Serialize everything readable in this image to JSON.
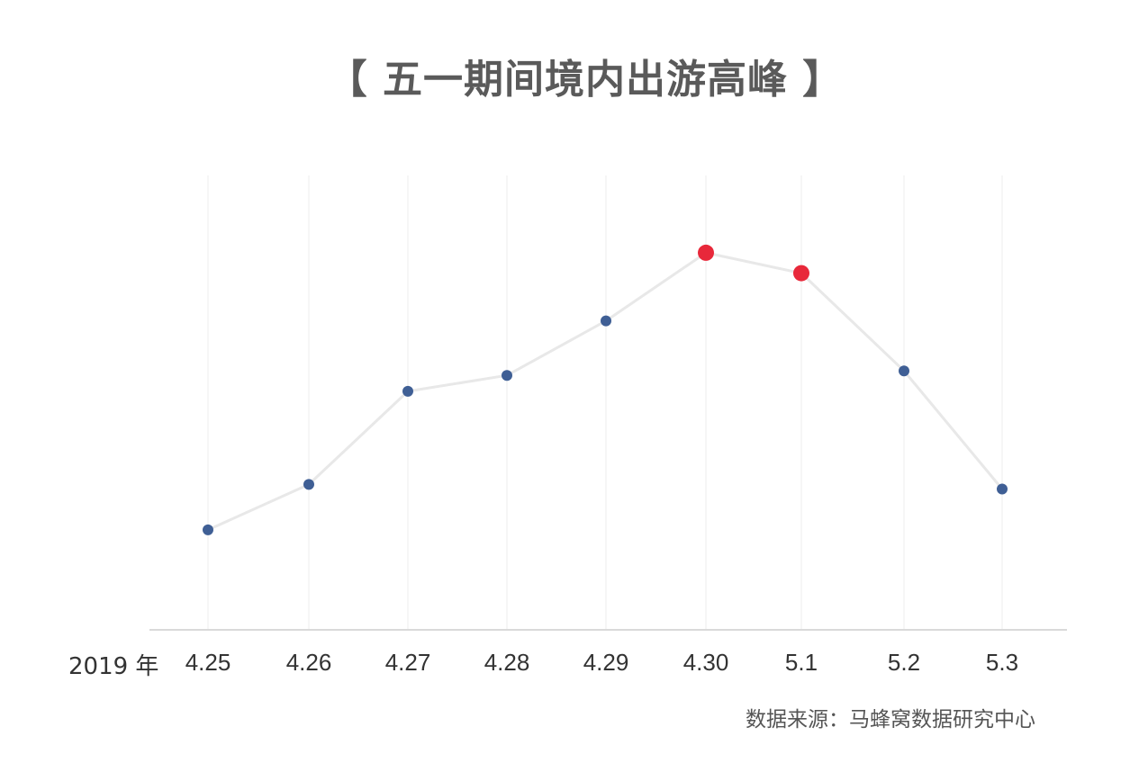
{
  "title": "【 五一期间境内出游高峰 】",
  "year_label": "2019 年",
  "source": "数据来源：马蜂窝数据研究中心",
  "colors": {
    "line": "#e8e8e8",
    "point": "#3f5f95",
    "highlight": "#e8283a",
    "grid": "#ececec",
    "axis": "#d9d9d9"
  },
  "chart_data": {
    "type": "line",
    "title": "【 五一期间境内出游高峰 】",
    "xlabel": "2019 年",
    "ylabel": "",
    "categories": [
      "4.25",
      "4.26",
      "4.27",
      "4.28",
      "4.29",
      "4.30",
      "5.1",
      "5.2",
      "5.3"
    ],
    "values": [
      22,
      32,
      52.5,
      56,
      68,
      83,
      78.5,
      57,
      31
    ],
    "highlight": [
      "4.30",
      "5.1"
    ],
    "ylim": [
      0,
      100
    ],
    "grid": "vertical",
    "legend": "none",
    "y_axis_labels": "none"
  }
}
